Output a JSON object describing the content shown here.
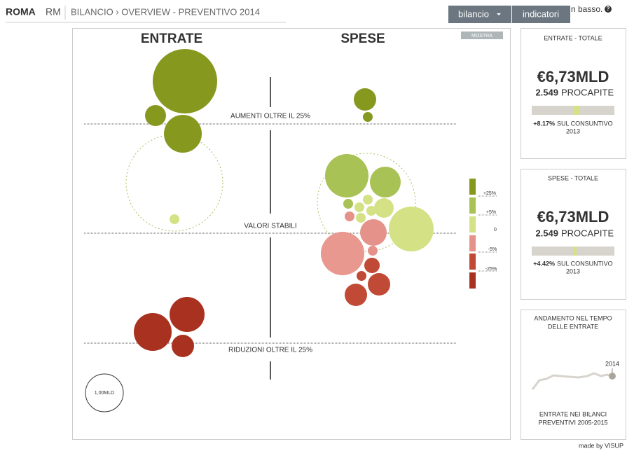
{
  "header": {
    "city": "ROMA",
    "province": "RM",
    "breadcrumb": "BILANCIO › OVERVIEW - PREVENTIVO 2014",
    "menu": [
      "bilancio",
      "indicatori"
    ],
    "hint": "n basso.",
    "help": "?"
  },
  "main": {
    "columns": [
      "ENTRATE",
      "SPESE"
    ],
    "toggle": "MOSTRA",
    "bands": [
      "AUMENTI OLTRE IL 25%",
      "VALORI STABILI",
      "RIDUZIONI OLTRE IL 25%"
    ],
    "legend": [
      "+25%",
      "+5%",
      "0",
      "-5%",
      "-25%"
    ],
    "size_legend": "1,00MLD"
  },
  "panels": [
    {
      "title": "ENTRATE - TOTALE",
      "total": "€6,73MLD",
      "per_capita": "2.549",
      "per_capita_label": "PROCAPITE",
      "change": "+8.17%",
      "change_label": "SUL CONSUNTIVO",
      "change_year": "2013"
    },
    {
      "title": "SPESE - TOTALE",
      "total": "€6,73MLD",
      "per_capita": "2.549",
      "per_capita_label": "PROCAPITE",
      "change": "+4.42%",
      "change_label": "SUL CONSUNTIVO",
      "change_year": "2013"
    },
    {
      "title_lines": [
        "ANDAMENTO NEL TEMPO",
        "DELLE ENTRATE"
      ],
      "point_label": "2014",
      "caption_lines": [
        "ENTRATE NEI BILANCI",
        "PREVENTIVI 2005-2015"
      ]
    }
  ],
  "footer": "made by VISUP"
}
